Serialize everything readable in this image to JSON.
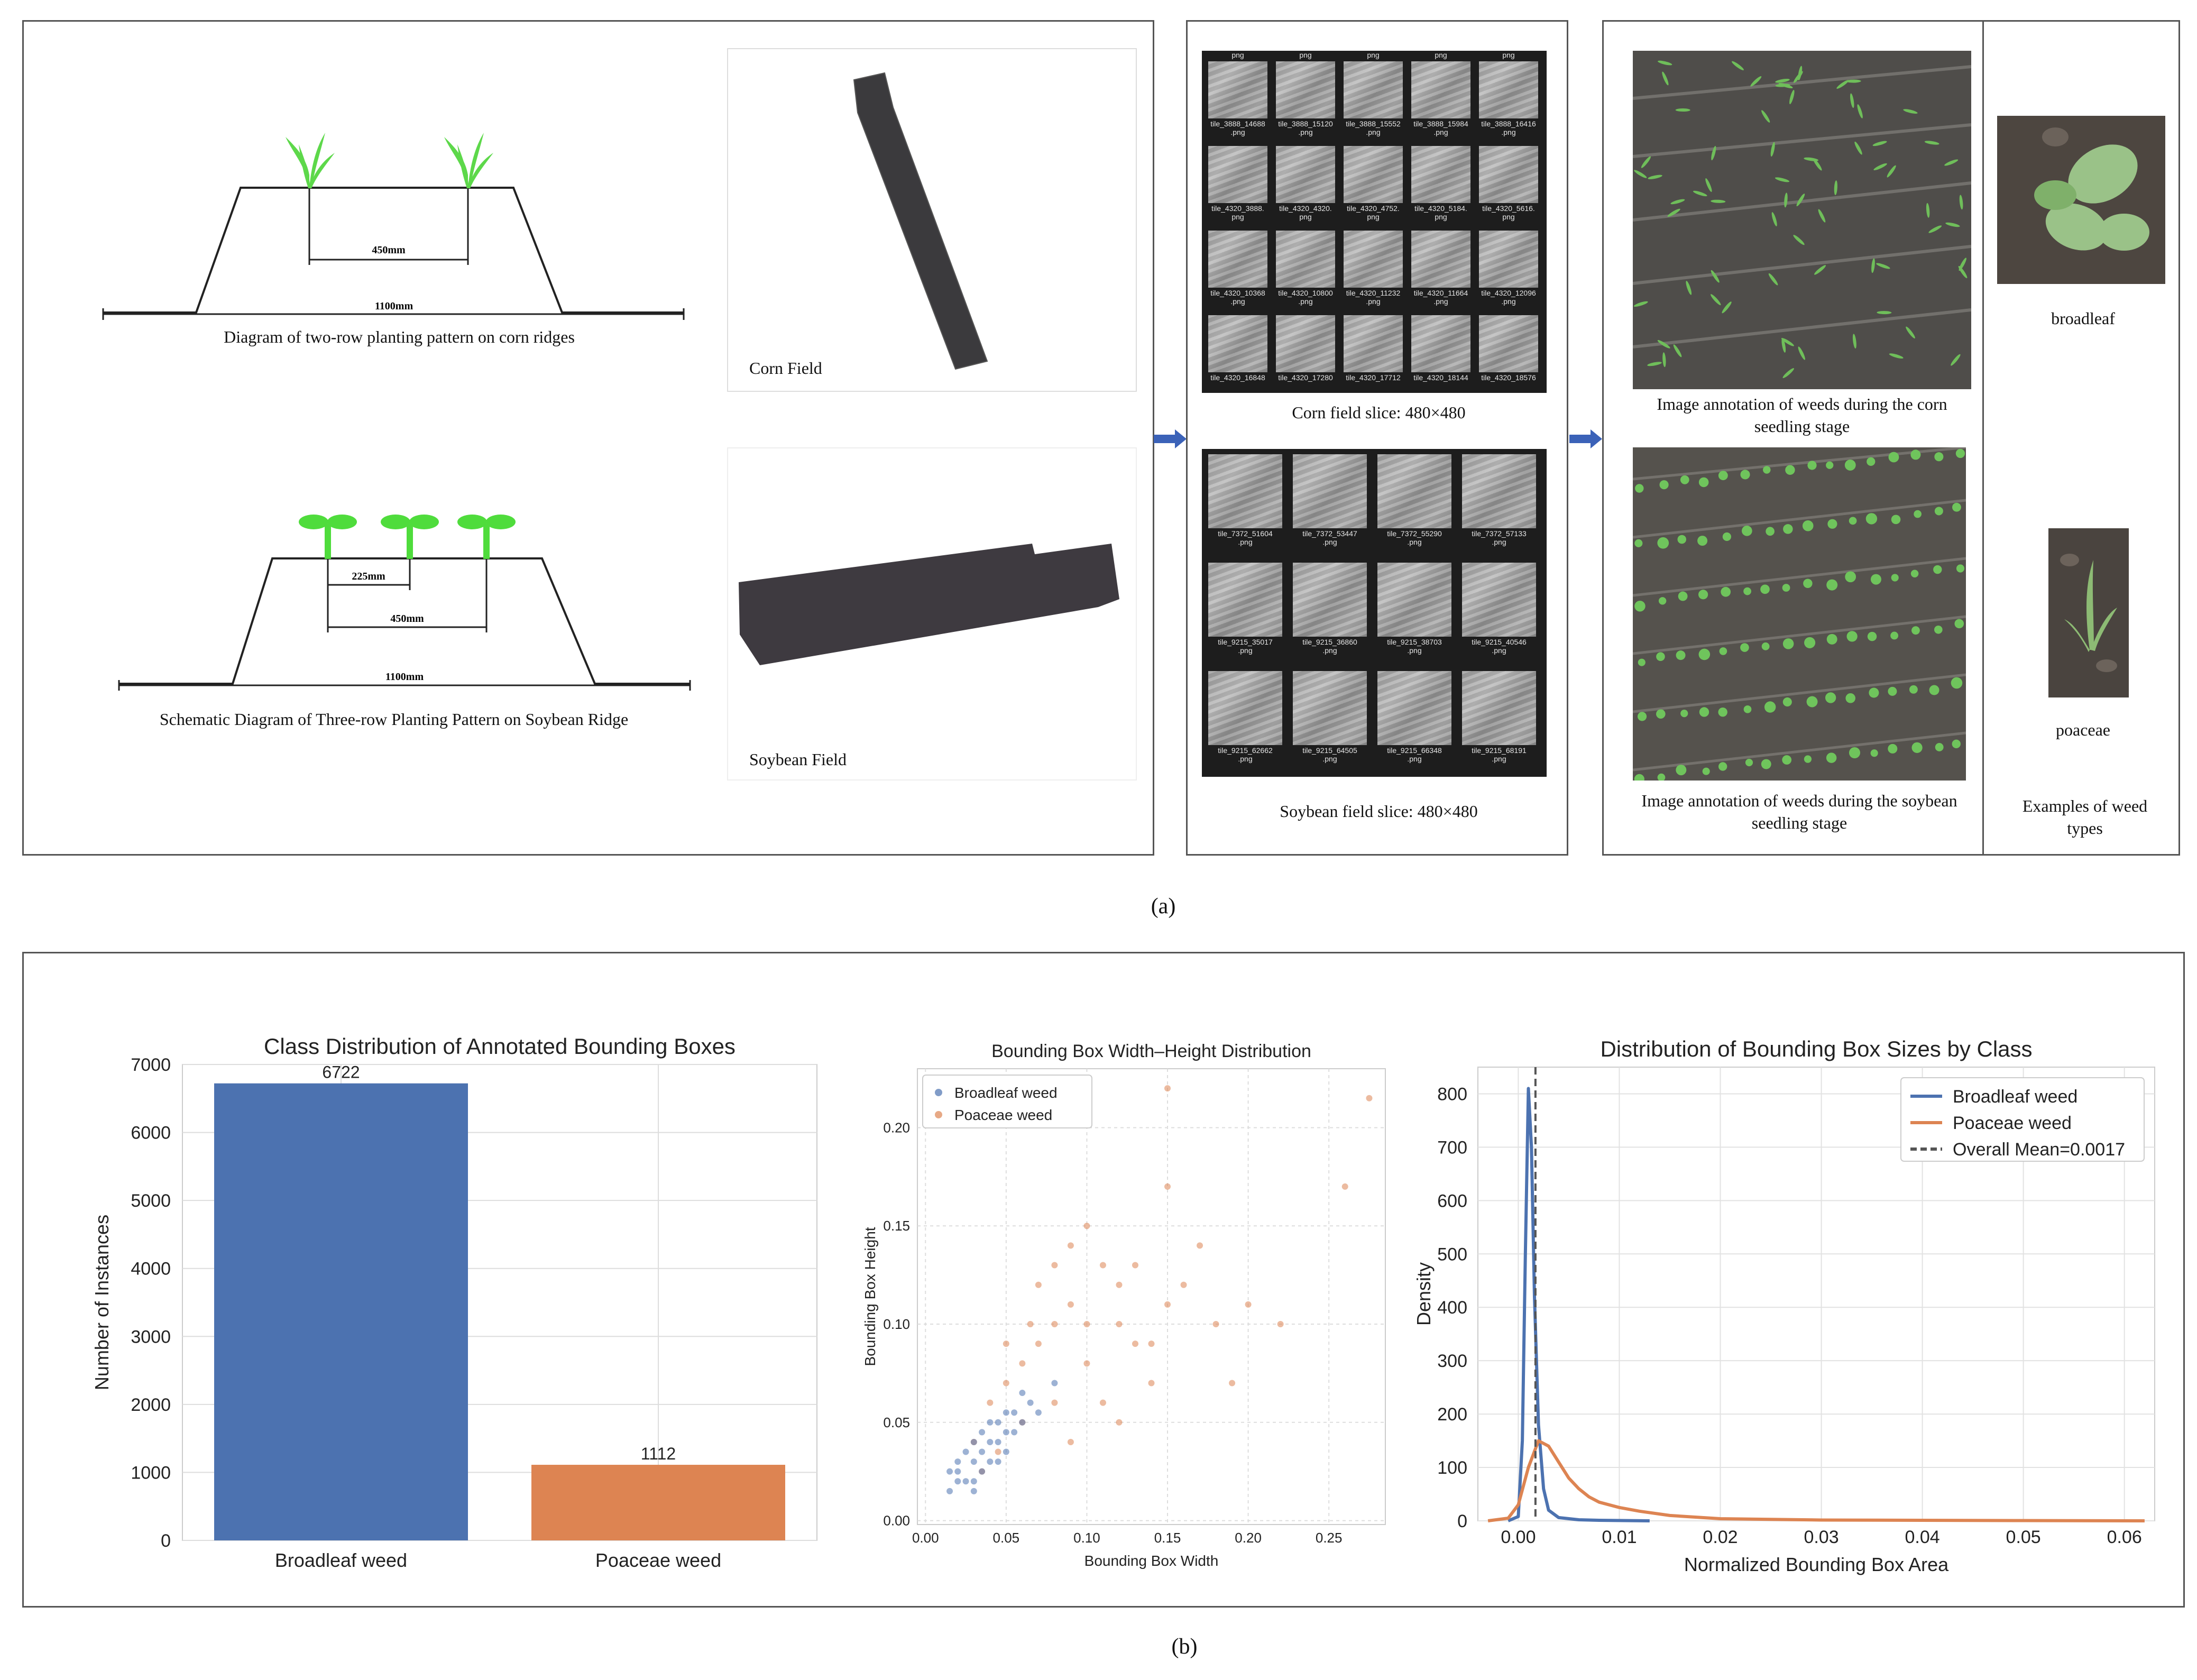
{
  "panel_a": {
    "corn_diagram": {
      "caption": "Diagram of two-row planting pattern on corn ridges",
      "dim_inner": "450mm",
      "dim_outer": "1100mm"
    },
    "soy_diagram": {
      "caption": "Schematic Diagram of Three-row Planting Pattern on Soybean Ridge",
      "dim_small": "225mm",
      "dim_inner": "450mm",
      "dim_outer": "1100mm"
    },
    "corn_field_label": "Corn Field",
    "soy_field_label": "Soybean Field",
    "corn_slice_caption": "Corn field slice: 480×480",
    "soy_slice_caption": "Soybean field slice: 480×480",
    "corn_tiles": [
      [
        "tile_3888_14688\n.png",
        "tile_3888_15120\n.png",
        "tile_3888_15552\n.png",
        "tile_3888_15984\n.png",
        "tile_3888_16416\n.png"
      ],
      [
        "tile_4320_3888.\npng",
        "tile_4320_4320.\npng",
        "tile_4320_4752.\npng",
        "tile_4320_5184.\npng",
        "tile_4320_5616.\npng"
      ],
      [
        "tile_4320_10368\n.png",
        "tile_4320_10800\n.png",
        "tile_4320_11232\n.png",
        "tile_4320_11664\n.png",
        "tile_4320_12096\n.png"
      ],
      [
        "tile_4320_16848",
        "tile_4320_17280",
        "tile_4320_17712",
        "tile_4320_18144",
        "tile_4320_18576"
      ]
    ],
    "corn_top_labels": [
      "png",
      "png",
      "png",
      "png",
      "png"
    ],
    "soy_tiles": [
      [
        "tile_7372_51604\n.png",
        "tile_7372_53447\n.png",
        "tile_7372_55290\n.png",
        "tile_7372_57133\n.png"
      ],
      [
        "tile_9215_35017\n.png",
        "tile_9215_36860\n.png",
        "tile_9215_38703\n.png",
        "tile_9215_40546\n.png"
      ],
      [
        "tile_9215_62662\n.png",
        "tile_9215_64505\n.png",
        "tile_9215_66348\n.png",
        "tile_9215_68191\n.png"
      ]
    ],
    "corn_annot_caption": "Image annotation of weeds during the corn seedling stage",
    "soy_annot_caption": "Image annotation of weeds during the soybean seedling stage",
    "broadleaf_label": "broadleaf",
    "poaceae_label": "poaceae",
    "weed_types_caption": "Examples of weed types",
    "label": "(a)"
  },
  "panel_b": {
    "label": "(b)"
  },
  "chart_data": [
    {
      "type": "bar",
      "title": "Class Distribution of Annotated Bounding Boxes",
      "xlabel": "",
      "ylabel": "Number of Instances",
      "categories": [
        "Broadleaf weed",
        "Poaceae weed"
      ],
      "values": [
        6722,
        1112
      ],
      "value_labels": [
        "6722",
        "1112"
      ],
      "colors": [
        "#4c72b0",
        "#dd8452"
      ],
      "ylim": [
        0,
        7000
      ],
      "yticks": [
        0,
        1000,
        2000,
        3000,
        4000,
        5000,
        6000,
        7000
      ],
      "grid": true
    },
    {
      "type": "scatter",
      "title": "Bounding Box Width–Height Distribution",
      "xlabel": "Bounding Box Width",
      "ylabel": "Bounding Box Height",
      "xlim": [
        -0.005,
        0.285
      ],
      "ylim": [
        -0.002,
        0.23
      ],
      "xticks": [
        0.0,
        0.05,
        0.1,
        0.15,
        0.2,
        0.25
      ],
      "xtick_labels": [
        "0.00",
        "0.05",
        "0.10",
        "0.15",
        "0.20",
        "0.25"
      ],
      "yticks": [
        0.0,
        0.05,
        0.1,
        0.15,
        0.2
      ],
      "ytick_labels": [
        "0.00",
        "0.05",
        "0.10",
        "0.15",
        "0.20"
      ],
      "legend": "top-left",
      "grid": true,
      "series": [
        {
          "name": "Broadleaf weed",
          "color": "#4c72b0",
          "points": [
            [
              0.02,
              0.02
            ],
            [
              0.03,
              0.03
            ],
            [
              0.025,
              0.035
            ],
            [
              0.04,
              0.04
            ],
            [
              0.035,
              0.025
            ],
            [
              0.045,
              0.05
            ],
            [
              0.05,
              0.045
            ],
            [
              0.015,
              0.015
            ],
            [
              0.03,
              0.02
            ],
            [
              0.055,
              0.055
            ],
            [
              0.06,
              0.05
            ],
            [
              0.02,
              0.03
            ],
            [
              0.04,
              0.03
            ],
            [
              0.035,
              0.045
            ],
            [
              0.025,
              0.02
            ],
            [
              0.05,
              0.035
            ],
            [
              0.065,
              0.06
            ],
            [
              0.045,
              0.04
            ],
            [
              0.03,
              0.04
            ],
            [
              0.07,
              0.055
            ],
            [
              0.02,
              0.025
            ],
            [
              0.04,
              0.05
            ],
            [
              0.055,
              0.045
            ],
            [
              0.06,
              0.065
            ],
            [
              0.015,
              0.025
            ],
            [
              0.03,
              0.015
            ],
            [
              0.08,
              0.07
            ],
            [
              0.045,
              0.03
            ],
            [
              0.035,
              0.035
            ],
            [
              0.05,
              0.055
            ]
          ]
        },
        {
          "name": "Poaceae weed",
          "color": "#dd8452",
          "points": [
            [
              0.03,
              0.04
            ],
            [
              0.05,
              0.07
            ],
            [
              0.07,
              0.09
            ],
            [
              0.09,
              0.11
            ],
            [
              0.1,
              0.08
            ],
            [
              0.12,
              0.1
            ],
            [
              0.08,
              0.06
            ],
            [
              0.06,
              0.05
            ],
            [
              0.11,
              0.13
            ],
            [
              0.13,
              0.09
            ],
            [
              0.15,
              0.11
            ],
            [
              0.09,
              0.14
            ],
            [
              0.07,
              0.12
            ],
            [
              0.14,
              0.07
            ],
            [
              0.04,
              0.06
            ],
            [
              0.16,
              0.12
            ],
            [
              0.1,
              0.15
            ],
            [
              0.12,
              0.05
            ],
            [
              0.18,
              0.1
            ],
            [
              0.2,
              0.11
            ],
            [
              0.05,
              0.09
            ],
            [
              0.08,
              0.13
            ],
            [
              0.11,
              0.06
            ],
            [
              0.17,
              0.14
            ],
            [
              0.06,
              0.08
            ],
            [
              0.09,
              0.04
            ],
            [
              0.13,
              0.13
            ],
            [
              0.15,
              0.17
            ],
            [
              0.22,
              0.1
            ],
            [
              0.26,
              0.17
            ],
            [
              0.275,
              0.215
            ],
            [
              0.15,
              0.22
            ],
            [
              0.035,
              0.025
            ],
            [
              0.045,
              0.035
            ],
            [
              0.1,
              0.1
            ],
            [
              0.12,
              0.12
            ],
            [
              0.08,
              0.1
            ],
            [
              0.14,
              0.09
            ],
            [
              0.19,
              0.07
            ],
            [
              0.065,
              0.1
            ]
          ]
        }
      ]
    },
    {
      "type": "line",
      "title": "Distribution of Bounding Box Sizes by Class",
      "xlabel": "Normalized Bounding Box Area",
      "ylabel": "Density",
      "xlim": [
        -0.004,
        0.063
      ],
      "ylim": [
        0,
        850
      ],
      "xticks": [
        0.0,
        0.01,
        0.02,
        0.03,
        0.04,
        0.05,
        0.06
      ],
      "xtick_labels": [
        "0.00",
        "0.01",
        "0.02",
        "0.03",
        "0.04",
        "0.05",
        "0.06"
      ],
      "yticks": [
        0,
        100,
        200,
        300,
        400,
        500,
        600,
        700,
        800
      ],
      "legend": "top-right",
      "grid": true,
      "series": [
        {
          "name": "Broadleaf weed",
          "color": "#4c72b0",
          "x": [
            -0.001,
            0.0,
            0.0004,
            0.0007,
            0.001,
            0.0013,
            0.0016,
            0.002,
            0.0025,
            0.003,
            0.004,
            0.006,
            0.008,
            0.013
          ],
          "y": [
            0,
            8,
            150,
            500,
            810,
            700,
            420,
            180,
            60,
            20,
            6,
            2,
            1,
            0
          ]
        },
        {
          "name": "Poaceae weed",
          "color": "#dd8452",
          "x": [
            -0.003,
            -0.001,
            0.0,
            0.001,
            0.002,
            0.003,
            0.004,
            0.005,
            0.006,
            0.007,
            0.008,
            0.01,
            0.012,
            0.015,
            0.02,
            0.03,
            0.04,
            0.05,
            0.062
          ],
          "y": [
            0,
            5,
            30,
            100,
            150,
            140,
            110,
            80,
            60,
            45,
            35,
            25,
            18,
            10,
            4,
            1.5,
            1,
            0.5,
            0
          ]
        },
        {
          "name": "Overall Mean=0.0017",
          "color": "#555555",
          "dashed": true,
          "vline": 0.0017
        }
      ]
    }
  ]
}
